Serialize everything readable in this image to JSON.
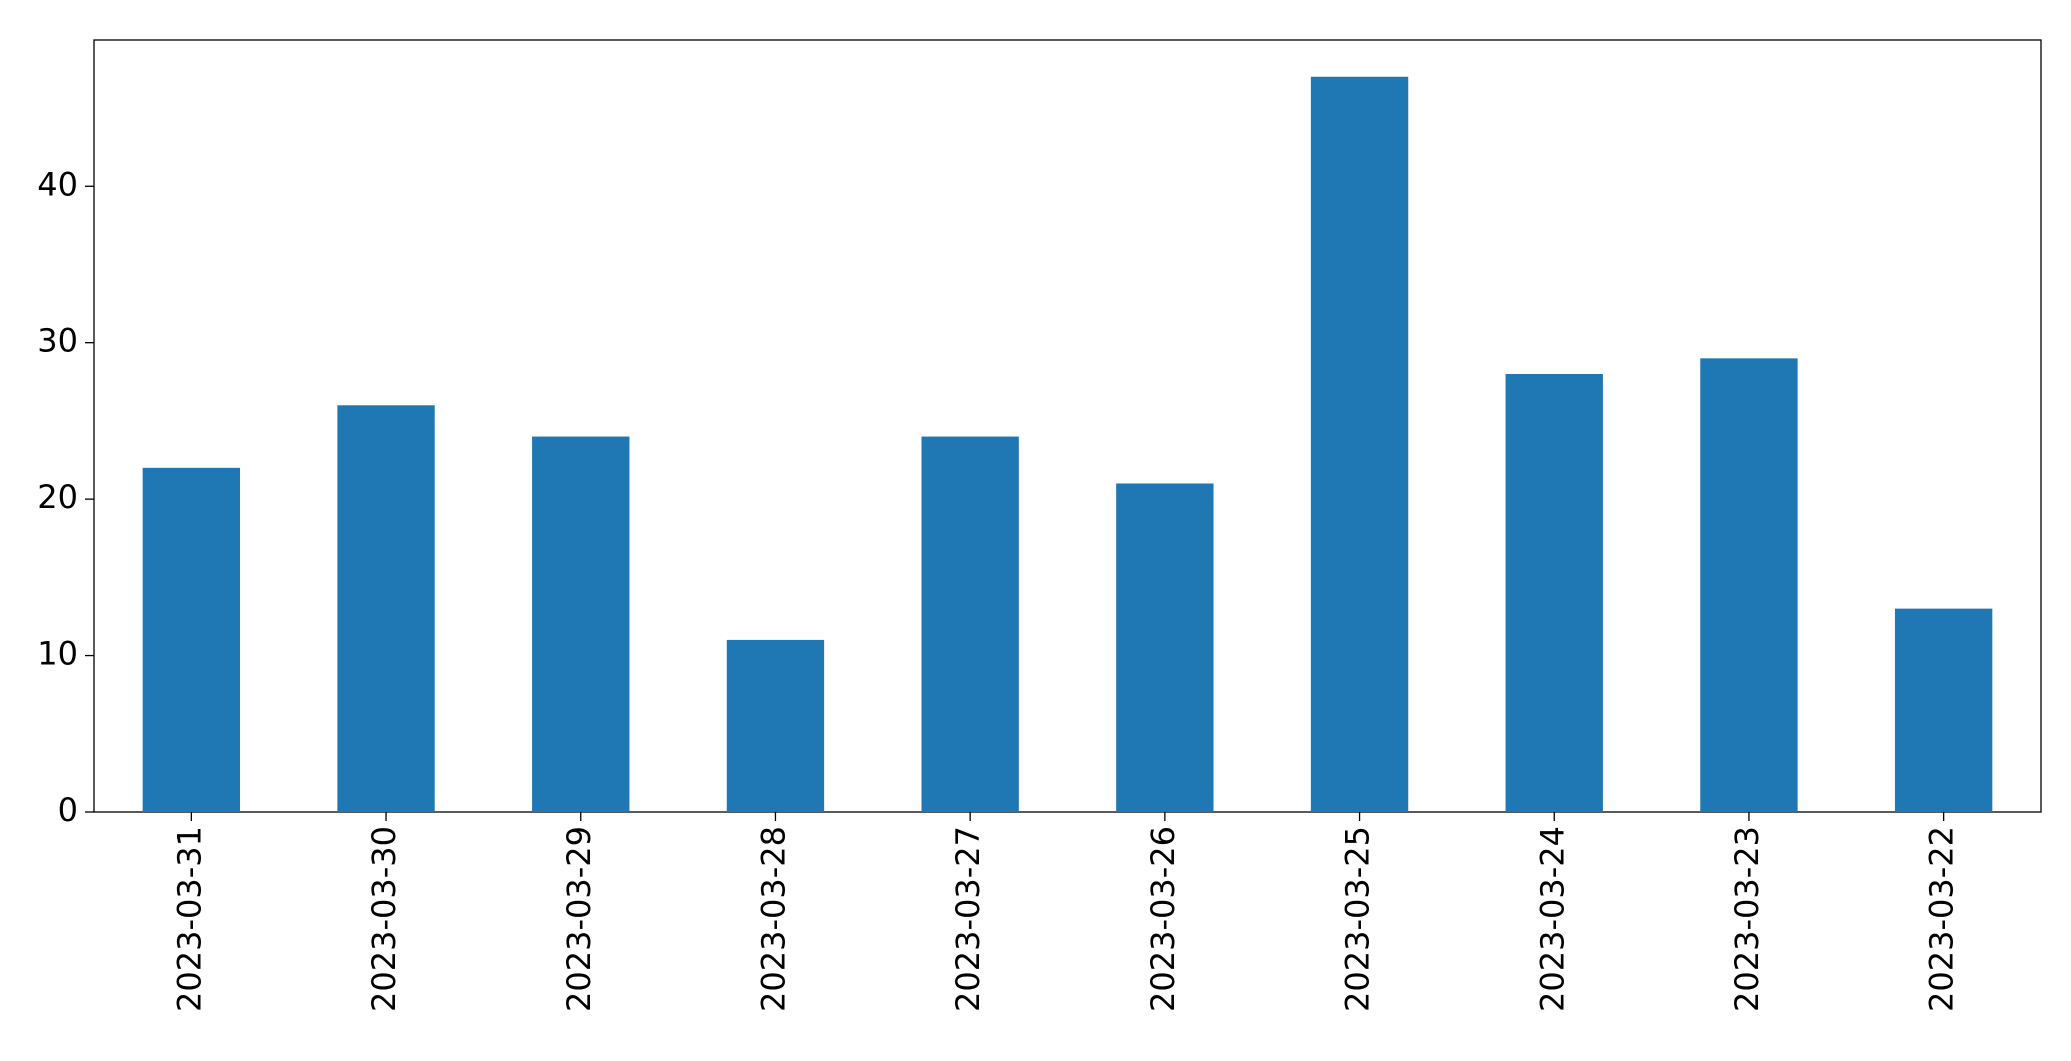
{
  "chart_data": {
    "type": "bar",
    "categories": [
      "2023-03-31",
      "2023-03-30",
      "2023-03-29",
      "2023-03-28",
      "2023-03-27",
      "2023-03-26",
      "2023-03-25",
      "2023-03-24",
      "2023-03-23",
      "2023-03-22"
    ],
    "values": [
      22,
      26,
      24,
      11,
      24,
      21,
      47,
      28,
      29,
      13
    ],
    "color": "#1f77b4",
    "ylim": [
      0,
      49.35
    ],
    "yticks": [
      0,
      10,
      20,
      30,
      40
    ],
    "grid": false
  }
}
